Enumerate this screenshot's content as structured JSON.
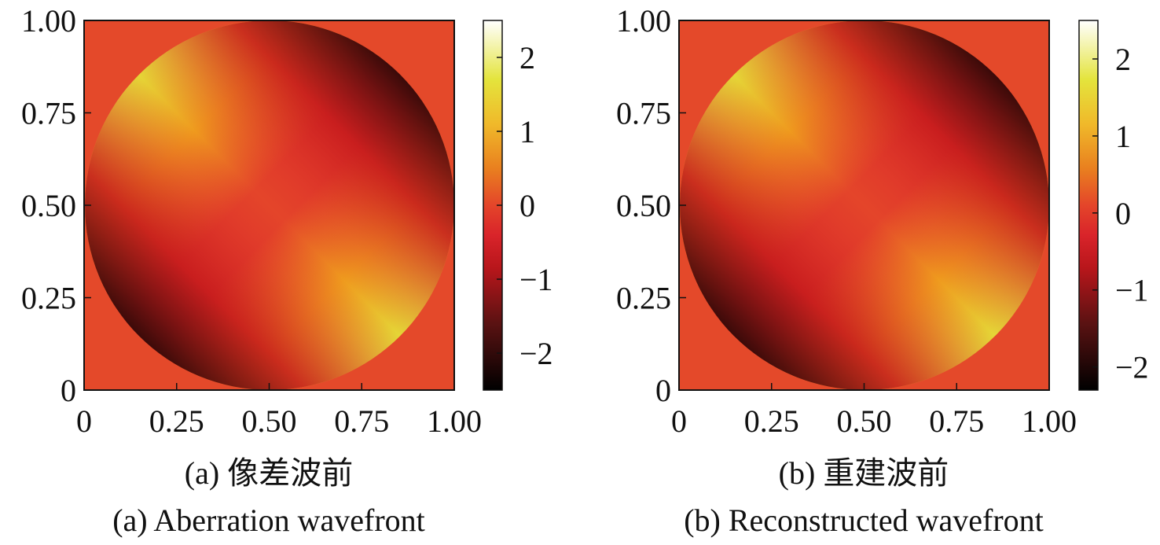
{
  "chart_data": [
    {
      "type": "heatmap",
      "caption_cn": "(a) 像差波前",
      "caption_en": "(a) Aberration wavefront",
      "xlim": [
        0,
        1
      ],
      "ylim": [
        0,
        1
      ],
      "x_ticks": [
        "0",
        "0.25",
        "0.50",
        "0.75",
        "1.00"
      ],
      "y_ticks": [
        "0",
        "0.25",
        "0.50",
        "0.75",
        "1.00"
      ],
      "x_tick_values": [
        0,
        0.25,
        0.5,
        0.75,
        1
      ],
      "y_tick_values": [
        0,
        0.25,
        0.5,
        0.75,
        1
      ],
      "colorbar": {
        "range": [
          -2.5,
          2.5
        ],
        "ticks": [
          "2",
          "1",
          "0",
          "−1",
          "−2"
        ],
        "tick_values": [
          2,
          1,
          0,
          -1,
          -2
        ]
      },
      "aperture": {
        "shape": "circle",
        "center": [
          0.5,
          0.5
        ],
        "radius": 0.5
      },
      "field": "astigmatism-like saddle: values high (~2.4) toward upper-left and lower-right, low (~-2.5) toward upper-right and lower-left, ~0 near center and outside the aperture",
      "colormap": "hot"
    },
    {
      "type": "heatmap",
      "caption_cn": "(b) 重建波前",
      "caption_en": "(b) Reconstructed wavefront",
      "xlim": [
        0,
        1
      ],
      "ylim": [
        0,
        1
      ],
      "x_ticks": [
        "0",
        "0.25",
        "0.50",
        "0.75",
        "1.00"
      ],
      "y_ticks": [
        "0",
        "0.25",
        "0.50",
        "0.75",
        "1.00"
      ],
      "x_tick_values": [
        0,
        0.25,
        0.5,
        0.75,
        1
      ],
      "y_tick_values": [
        0,
        0.25,
        0.5,
        0.75,
        1
      ],
      "colorbar": {
        "range": [
          -2.3,
          2.5
        ],
        "ticks": [
          "2",
          "1",
          "0",
          "−1",
          "−2"
        ],
        "tick_values": [
          2,
          1,
          0,
          -1,
          -2
        ]
      },
      "aperture": {
        "shape": "circle",
        "center": [
          0.5,
          0.5
        ],
        "radius": 0.5
      },
      "field": "reconstruction closely matching panel (a)",
      "colormap": "hot"
    }
  ]
}
